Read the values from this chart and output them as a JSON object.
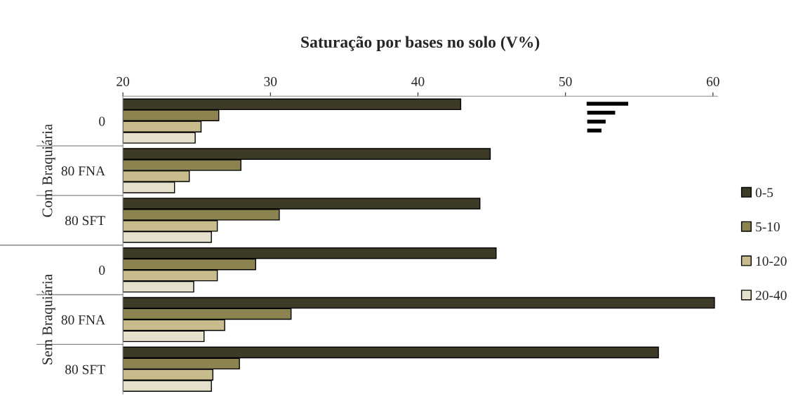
{
  "chart_data": {
    "type": "bar",
    "orientation": "horizontal",
    "title": "Saturação por bases no solo (V%)",
    "categories": [
      "0",
      "80 FNA",
      "80 SFT",
      "0",
      "80 FNA",
      "80 SFT"
    ],
    "series": [
      {
        "name": "0-5",
        "color": "#3d3a28",
        "values": [
          42.9,
          44.9,
          44.2,
          45.3,
          60.1,
          56.3
        ]
      },
      {
        "name": "5-10",
        "color": "#8c8450",
        "values": [
          26.5,
          28.0,
          30.6,
          29.0,
          31.4,
          27.9
        ]
      },
      {
        "name": "10-20",
        "color": "#c8bc8c",
        "values": [
          25.3,
          24.5,
          26.4,
          26.4,
          26.9,
          26.1
        ]
      },
      {
        "name": "20-40",
        "color": "#e4e0cc",
        "values": [
          24.9,
          23.5,
          26.0,
          24.8,
          25.5,
          26.0
        ]
      }
    ],
    "annotations": [
      "Com Braquiária",
      "Sem Braquiária"
    ],
    "xlim": [
      20,
      60.3
    ],
    "xticks": [
      20,
      30,
      40,
      50,
      60
    ],
    "grid": false,
    "legend": "right"
  }
}
